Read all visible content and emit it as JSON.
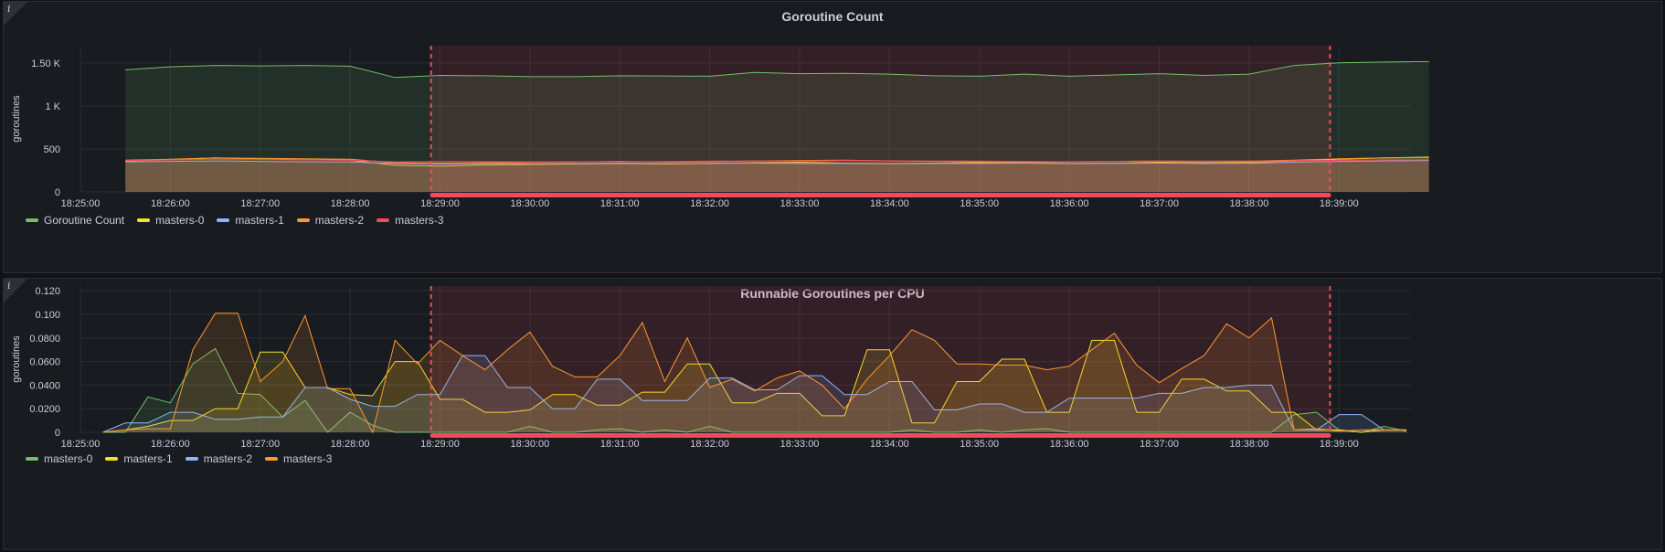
{
  "chart_data": [
    {
      "type": "area",
      "title": "Goroutine Count",
      "ylabel": "goroutines",
      "ylim": [
        0,
        1700
      ],
      "yticks": [
        0,
        500,
        1000,
        1500
      ],
      "ytick_labels": [
        "0",
        "500",
        "1 K",
        "1.50 K"
      ],
      "xlim_minutes": [
        0,
        14.8
      ],
      "x_labels": [
        "18:25:00",
        "18:26:00",
        "18:27:00",
        "18:28:00",
        "18:29:00",
        "18:30:00",
        "18:31:00",
        "18:32:00",
        "18:33:00",
        "18:34:00",
        "18:35:00",
        "18:36:00",
        "18:37:00",
        "18:38:00",
        "18:39:00"
      ],
      "annotation": {
        "start": 3.9,
        "end": 13.9
      },
      "x": [
        0.5,
        1,
        1.5,
        2,
        2.5,
        3,
        3.5,
        4,
        4.5,
        5,
        5.5,
        6,
        6.5,
        7,
        7.5,
        8,
        8.5,
        9,
        9.5,
        10,
        10.5,
        11,
        11.5,
        12,
        12.5,
        13,
        13.5,
        14,
        14.5,
        15
      ],
      "series": [
        {
          "name": "Goroutine Count",
          "color": "#73bf69",
          "values": [
            1420,
            1455,
            1470,
            1465,
            1470,
            1462,
            1330,
            1355,
            1350,
            1340,
            1340,
            1350,
            1348,
            1345,
            1390,
            1375,
            1378,
            1370,
            1350,
            1345,
            1370,
            1345,
            1360,
            1375,
            1355,
            1370,
            1470,
            1500,
            1510,
            1515
          ]
        },
        {
          "name": "masters-0",
          "color": "#fade2a",
          "values": [
            360,
            375,
            395,
            380,
            375,
            370,
            310,
            300,
            315,
            320,
            325,
            330,
            325,
            330,
            340,
            345,
            335,
            330,
            335,
            340,
            335,
            330,
            335,
            345,
            340,
            345,
            360,
            380,
            395,
            405
          ]
        },
        {
          "name": "masters-1",
          "color": "#8ab8ff",
          "values": [
            350,
            355,
            360,
            355,
            350,
            348,
            330,
            325,
            330,
            328,
            330,
            335,
            330,
            332,
            335,
            330,
            332,
            328,
            330,
            333,
            335,
            330,
            332,
            335,
            330,
            333,
            345,
            355,
            360,
            365
          ]
        },
        {
          "name": "masters-2",
          "color": "#ff9830",
          "values": [
            370,
            380,
            395,
            390,
            385,
            380,
            340,
            335,
            340,
            345,
            350,
            355,
            350,
            350,
            360,
            365,
            370,
            360,
            355,
            350,
            345,
            350,
            355,
            360,
            355,
            358,
            370,
            385,
            395,
            400
          ]
        },
        {
          "name": "masters-3",
          "color": "#f2495c",
          "values": [
            365,
            372,
            380,
            378,
            372,
            370,
            350,
            355,
            352,
            350,
            352,
            350,
            355,
            358,
            360,
            360,
            365,
            362,
            360,
            358,
            355,
            352,
            356,
            360,
            358,
            360,
            362,
            368,
            372,
            375
          ]
        }
      ]
    },
    {
      "type": "area",
      "title": "Runnable Goroutines per CPU",
      "ylabel": "goroutines",
      "ylim": [
        0,
        0.124
      ],
      "yticks": [
        0,
        0.02,
        0.04,
        0.06,
        0.08,
        0.1,
        0.12
      ],
      "ytick_labels": [
        "0",
        "0.0200",
        "0.0400",
        "0.0600",
        "0.0800",
        "0.100",
        "0.120"
      ],
      "xlim_minutes": [
        0,
        14.8
      ],
      "x_labels": [
        "18:25:00",
        "18:26:00",
        "18:27:00",
        "18:28:00",
        "18:29:00",
        "18:30:00",
        "18:31:00",
        "18:32:00",
        "18:33:00",
        "18:34:00",
        "18:35:00",
        "18:36:00",
        "18:37:00",
        "18:38:00",
        "18:39:00"
      ],
      "annotation": {
        "start": 3.9,
        "end": 13.9
      },
      "x": [
        0.25,
        0.5,
        0.75,
        1,
        1.25,
        1.5,
        1.75,
        2,
        2.25,
        2.5,
        2.75,
        3,
        3.25,
        3.5,
        3.75,
        4,
        4.25,
        4.5,
        4.75,
        5,
        5.25,
        5.5,
        5.75,
        6,
        6.25,
        6.5,
        6.75,
        7,
        7.25,
        7.5,
        7.75,
        8,
        8.25,
        8.5,
        8.75,
        9,
        9.25,
        9.5,
        9.75,
        10,
        10.25,
        10.5,
        10.75,
        11,
        11.25,
        11.5,
        11.75,
        12,
        12.25,
        12.5,
        12.75,
        13,
        13.25,
        13.5,
        13.75,
        14,
        14.25,
        14.5,
        14.75
      ],
      "series": [
        {
          "name": "masters-0",
          "color": "#73bf69",
          "values": [
            0,
            0,
            0.03,
            0.025,
            0.058,
            0.071,
            0.033,
            0.032,
            0.013,
            0.027,
            0,
            0.017,
            0.006,
            0,
            0,
            0,
            0,
            0,
            0,
            0.005,
            0,
            0,
            0.002,
            0.003,
            0,
            0.002,
            0,
            0.005,
            0,
            0,
            0,
            0,
            0,
            0,
            0,
            0,
            0.002,
            0,
            0,
            0.002,
            0,
            0.002,
            0.003,
            0,
            0,
            0,
            0,
            0,
            0,
            0,
            0,
            0,
            0,
            0.015,
            0.017,
            0.002,
            0,
            0.005,
            0.001
          ]
        },
        {
          "name": "masters-1",
          "color": "#fade2a",
          "values": [
            0,
            0.002,
            0.005,
            0.01,
            0.01,
            0.02,
            0.02,
            0.068,
            0.068,
            0.038,
            0.038,
            0.032,
            0.031,
            0.06,
            0.06,
            0.028,
            0.028,
            0.017,
            0.017,
            0.019,
            0.032,
            0.032,
            0.023,
            0.023,
            0.034,
            0.034,
            0.058,
            0.058,
            0.025,
            0.025,
            0.033,
            0.033,
            0.014,
            0.014,
            0.07,
            0.07,
            0.008,
            0.008,
            0.043,
            0.043,
            0.062,
            0.062,
            0.017,
            0.017,
            0.078,
            0.078,
            0.017,
            0.017,
            0.045,
            0.045,
            0.035,
            0.035,
            0.017,
            0.017,
            0.002,
            0.002,
            0,
            0.002,
            0.002
          ]
        },
        {
          "name": "masters-2",
          "color": "#8ab8ff",
          "values": [
            0,
            0.008,
            0.008,
            0.017,
            0.017,
            0.011,
            0.011,
            0.013,
            0.013,
            0.038,
            0.038,
            0.028,
            0.022,
            0.022,
            0.032,
            0.032,
            0.065,
            0.065,
            0.038,
            0.038,
            0.02,
            0.02,
            0.045,
            0.045,
            0.027,
            0.027,
            0.027,
            0.046,
            0.046,
            0.036,
            0.036,
            0.048,
            0.048,
            0.032,
            0.032,
            0.043,
            0.043,
            0.019,
            0.019,
            0.024,
            0.024,
            0.017,
            0.017,
            0.029,
            0.029,
            0.029,
            0.029,
            0.033,
            0.033,
            0.038,
            0.038,
            0.04,
            0.04,
            0.002,
            0.002,
            0.015,
            0.015,
            0.002,
            0.002
          ]
        },
        {
          "name": "masters-3",
          "color": "#ff9830",
          "values": [
            0,
            0.002,
            0.003,
            0.003,
            0.07,
            0.101,
            0.101,
            0.043,
            0.06,
            0.099,
            0.037,
            0.037,
            0,
            0.078,
            0.058,
            0.078,
            0.065,
            0.053,
            0.07,
            0.085,
            0.056,
            0.047,
            0.047,
            0.065,
            0.093,
            0.043,
            0.08,
            0.038,
            0.045,
            0.035,
            0.046,
            0.052,
            0.04,
            0.02,
            0.045,
            0.065,
            0.087,
            0.078,
            0.058,
            0.058,
            0.057,
            0.057,
            0.053,
            0.056,
            0.07,
            0.084,
            0.057,
            0.042,
            0.054,
            0.065,
            0.092,
            0.08,
            0.097,
            0.002,
            0.003,
            0.001,
            0.002,
            0.002,
            0.002
          ]
        }
      ]
    }
  ]
}
